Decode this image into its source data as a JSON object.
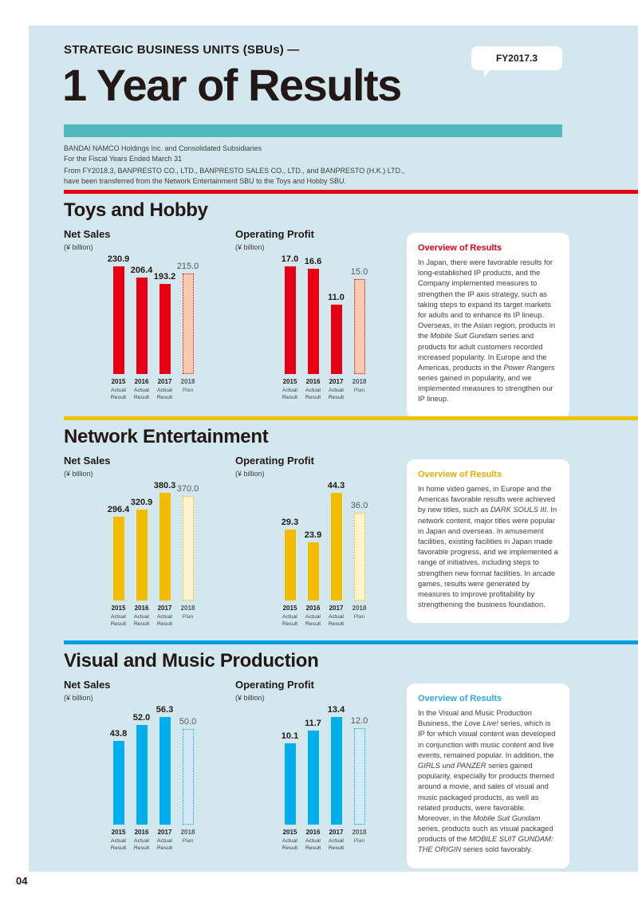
{
  "page": {
    "number": "04"
  },
  "header": {
    "kicker": "STRATEGIC BUSINESS UNITS (SBUs) —",
    "title": "1 Year of Results",
    "badge": "FY2017.3",
    "subtitle_line1": "BANDAI NAMCO Holdings Inc. and Consolidated Subsidiaries",
    "subtitle_line2": "For the Fiscal Years Ended March 31",
    "note_line1": "From FY2018.3, BANPRESTO CO., LTD., BANPRESTO SALES CO., LTD., and BANPRESTO (H.K.) LTD.,",
    "note_line2": "have been transferred from the Network Entertainment SBU to the Toys and Hobby SBU."
  },
  "colors": {
    "page_background": "#ffffff",
    "panel_background": "#d3e8ee",
    "teal_rule": "#4fb9bf",
    "toys_accent": "#e60012",
    "network_accent": "#f0c300",
    "visual_bar": "#00afec",
    "visual_divider": "#009fe0",
    "plan_label_gray": "#595757"
  },
  "sections": [
    {
      "title": "Toys and Hobby",
      "overview_heading": "Overview of Results",
      "overview_html": "In Japan, there were favorable results for long-established IP products, and the Company implemented measures to strengthen the IP axis strategy, such as taking steps to expand its target markets for adults and to enhance its IP lineup. Overseas, in the Asian region, products in the <i>Mobile Suit Gundam</i> series and products for adult customers recorded increased popularity. In Europe and the Americas, products in the <i>Power Rangers</i> series gained in popularity, and we implemented measures to strengthen our IP lineup."
    },
    {
      "title": "Network Entertainment",
      "overview_heading": "Overview of Results",
      "overview_html": "In home video games, in Europe and the Americas favorable results were achieved by new titles, such as <i>DARK SOULS III</i>. In network content, major titles were popular in Japan and overseas. In amusement facilities, existing facilities in Japan made favorable progress, and we implemented a range of initiatives, including steps to strengthen new format facilities. In arcade games, results were generated by measures to improve profitability by strengthening the business foundation."
    },
    {
      "title": "Visual and Music Production",
      "overview_heading": "Overview of Results",
      "overview_html": "In the Visual and Music Production Business, the <i>Love Live!</i> series, which is IP for which visual content was developed in conjunction with music content and live events, remained popular. In addition, the <i>GIRLS und PANZER</i> series gained popularity, especially for products themed around a movie, and sales of visual and music packaged products, as well as related products, were favorable. Moreover, in the <i>Mobile Suit Gundam</i> series, products such as visual packaged products of the <i>MOBILE SUIT GUNDAM: THE ORIGIN</i> series sold favorably."
    }
  ],
  "chart_data": [
    {
      "type": "bar",
      "section": "Toys and Hobby",
      "title": "Net Sales",
      "unit": "(¥ billion)",
      "categories": [
        "2015",
        "2016",
        "2017",
        "2018"
      ],
      "category_sublabels": [
        "Actual\nResult",
        "Actual\nResult",
        "Actual\nResult",
        "Plan"
      ],
      "values": [
        230.9,
        206.4,
        193.2,
        215.0
      ],
      "plan_index": 3,
      "bar_color": "#e60012",
      "plan_fill": "#f9c9b0"
    },
    {
      "type": "bar",
      "section": "Toys and Hobby",
      "title": "Operating Profit",
      "unit": "(¥ billion)",
      "categories": [
        "2015",
        "2016",
        "2017",
        "2018"
      ],
      "category_sublabels": [
        "Actual\nResult",
        "Actual\nResult",
        "Actual\nResult",
        "Plan"
      ],
      "values": [
        17.0,
        16.6,
        11.0,
        15.0
      ],
      "plan_index": 3,
      "bar_color": "#e60012",
      "plan_fill": "#f9c9b0"
    },
    {
      "type": "bar",
      "section": "Network Entertainment",
      "title": "Net Sales",
      "unit": "(¥ billion)",
      "categories": [
        "2015",
        "2016",
        "2017",
        "2018"
      ],
      "category_sublabels": [
        "Actual\nResult",
        "Actual\nResult",
        "Actual\nResult",
        "Plan"
      ],
      "values": [
        296.4,
        320.9,
        380.3,
        370.0
      ],
      "plan_index": 3,
      "bar_color": "#f2bd00",
      "plan_fill": "#fdf3cf"
    },
    {
      "type": "bar",
      "section": "Network Entertainment",
      "title": "Operating Profit",
      "unit": "(¥ billion)",
      "categories": [
        "2015",
        "2016",
        "2017",
        "2018"
      ],
      "category_sublabels": [
        "Actual\nResult",
        "Actual\nResult",
        "Actual\nResult",
        "Plan"
      ],
      "values": [
        29.3,
        23.9,
        44.3,
        36.0
      ],
      "plan_index": 3,
      "bar_color": "#f2bd00",
      "plan_fill": "#fdf3cf"
    },
    {
      "type": "bar",
      "section": "Visual and Music Production",
      "title": "Net Sales",
      "unit": "(¥ billion)",
      "categories": [
        "2015",
        "2016",
        "2017",
        "2018"
      ],
      "category_sublabels": [
        "Actual\nResult",
        "Actual\nResult",
        "Actual\nResult",
        "Plan"
      ],
      "values": [
        43.8,
        52.0,
        56.3,
        50.0
      ],
      "plan_index": 3,
      "bar_color": "#00afec",
      "plan_fill": "#d0eaf8"
    },
    {
      "type": "bar",
      "section": "Visual and Music Production",
      "title": "Operating Profit",
      "unit": "(¥ billion)",
      "categories": [
        "2015",
        "2016",
        "2017",
        "2018"
      ],
      "category_sublabels": [
        "Actual\nResult",
        "Actual\nResult",
        "Actual\nResult",
        "Plan"
      ],
      "values": [
        10.1,
        11.7,
        13.4,
        12.0
      ],
      "plan_index": 3,
      "bar_color": "#00afec",
      "plan_fill": "#d0eaf8"
    }
  ]
}
